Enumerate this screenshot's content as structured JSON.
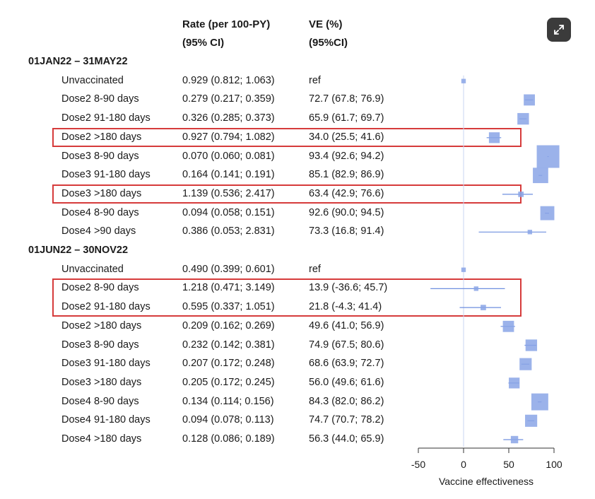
{
  "headers": {
    "rate_line1": "Rate (per 100-PY)",
    "rate_line2": "(95% CI)",
    "ve_line1": "VE (%)",
    "ve_line2": "(95%CI)"
  },
  "chart_data": {
    "type": "forest",
    "xlabel": "Vaccine effectiveness",
    "xlim": [
      -50,
      100
    ],
    "xticks": [
      -50,
      0,
      50,
      100
    ],
    "sections": [
      {
        "label": "01JAN22 – 31MAY22",
        "rows": [
          {
            "group": "Unvaccinated",
            "rate": "0.929 (0.812; 1.063)",
            "ve_text": "ref",
            "ve": 0,
            "lo": 0,
            "hi": 0,
            "weight": 0.05,
            "highlight": false
          },
          {
            "group": "Dose2 8-90 days",
            "rate": "0.279 (0.217; 0.359)",
            "ve_text": "72.7 (67.8; 76.9)",
            "ve": 72.7,
            "lo": 67.8,
            "hi": 76.9,
            "weight": 0.4,
            "highlight": false
          },
          {
            "group": "Dose2 91-180 days",
            "rate": "0.326 (0.285; 0.373)",
            "ve_text": "65.9 (61.7; 69.7)",
            "ve": 65.9,
            "lo": 61.7,
            "hi": 69.7,
            "weight": 0.42,
            "highlight": false
          },
          {
            "group": "Dose2 >180 days",
            "rate": "0.927 (0.794; 1.082)",
            "ve_text": "34.0 (25.5; 41.6)",
            "ve": 34.0,
            "lo": 25.5,
            "hi": 41.6,
            "weight": 0.38,
            "highlight": true
          },
          {
            "group": "Dose3 8-90 days",
            "rate": "0.070 (0.060; 0.081)",
            "ve_text": "93.4 (92.6; 94.2)",
            "ve": 93.4,
            "lo": 92.6,
            "hi": 94.2,
            "weight": 1.0,
            "highlight": false
          },
          {
            "group": "Dose3 91-180 days",
            "rate": "0.164 (0.141; 0.191)",
            "ve_text": "85.1 (82.9; 86.9)",
            "ve": 85.1,
            "lo": 82.9,
            "hi": 86.9,
            "weight": 0.62,
            "highlight": false
          },
          {
            "group": "Dose3 >180 days",
            "rate": "1.139 (0.536; 2.417)",
            "ve_text": "63.4 (42.9; 76.6)",
            "ve": 63.4,
            "lo": 42.9,
            "hi": 76.6,
            "weight": 0.1,
            "highlight": true
          },
          {
            "group": "Dose4 8-90 days",
            "rate": "0.094 (0.058; 0.151)",
            "ve_text": "92.6 (90.0; 94.5)",
            "ve": 92.6,
            "lo": 90.0,
            "hi": 94.5,
            "weight": 0.55,
            "highlight": false
          },
          {
            "group": "Dose4 >90 days",
            "rate": "0.386 (0.053; 2.831)",
            "ve_text": "73.3 (16.8; 91.4)",
            "ve": 73.3,
            "lo": 16.8,
            "hi": 91.4,
            "weight": 0.05,
            "highlight": false
          }
        ]
      },
      {
        "label": "01JUN22 – 30NOV22",
        "rows": [
          {
            "group": "Unvaccinated",
            "rate": "0.490 (0.399; 0.601)",
            "ve_text": "ref",
            "ve": 0,
            "lo": 0,
            "hi": 0,
            "weight": 0.05,
            "highlight": false
          },
          {
            "group": "Dose2 8-90 days",
            "rate": "1.218 (0.471; 3.149)",
            "ve_text": "13.9 (-36.6; 45.7)",
            "ve": 13.9,
            "lo": -36.6,
            "hi": 45.7,
            "weight": 0.05,
            "highlight": true
          },
          {
            "group": "Dose2 91-180 days",
            "rate": "0.595 (0.337; 1.051)",
            "ve_text": "21.8 (-4.3; 41.4)",
            "ve": 21.8,
            "lo": -4.3,
            "hi": 41.4,
            "weight": 0.1,
            "highlight": true
          },
          {
            "group": "Dose2 >180 days",
            "rate": "0.209 (0.162; 0.269)",
            "ve_text": "49.6 (41.0; 56.9)",
            "ve": 49.6,
            "lo": 41.0,
            "hi": 56.9,
            "weight": 0.4,
            "highlight": false
          },
          {
            "group": "Dose3 8-90 days",
            "rate": "0.232 (0.142; 0.381)",
            "ve_text": "74.9 (67.5; 80.6)",
            "ve": 74.9,
            "lo": 67.5,
            "hi": 80.6,
            "weight": 0.42,
            "highlight": false
          },
          {
            "group": "Dose3 91-180 days",
            "rate": "0.207 (0.172; 0.248)",
            "ve_text": "68.6 (63.9; 72.7)",
            "ve": 68.6,
            "lo": 63.9,
            "hi": 72.7,
            "weight": 0.45,
            "highlight": false
          },
          {
            "group": "Dose3 >180 days",
            "rate": "0.205 (0.172; 0.245)",
            "ve_text": "56.0 (49.6; 61.6)",
            "ve": 56.0,
            "lo": 49.6,
            "hi": 61.6,
            "weight": 0.38,
            "highlight": false
          },
          {
            "group": "Dose4 8-90 days",
            "rate": "0.134 (0.114; 0.156)",
            "ve_text": "84.3 (82.0; 86.2)",
            "ve": 84.3,
            "lo": 82.0,
            "hi": 86.2,
            "weight": 0.7,
            "highlight": false
          },
          {
            "group": "Dose4 91-180 days",
            "rate": "0.094 (0.078; 0.113)",
            "ve_text": "74.7 (70.7; 78.2)",
            "ve": 74.7,
            "lo": 70.7,
            "hi": 78.2,
            "weight": 0.45,
            "highlight": false
          },
          {
            "group": "Dose4 >180 days",
            "rate": "0.128 (0.086; 0.189)",
            "ve_text": "56.3 (44.0; 65.9)",
            "ve": 56.3,
            "lo": 44.0,
            "hi": 65.9,
            "weight": 0.2,
            "highlight": false
          }
        ]
      }
    ],
    "colors": {
      "marker": "#8aa4e6",
      "line": "#6f8fdf",
      "highlight": "#d63b3b",
      "axis": "#333333"
    }
  },
  "ui": {
    "expand_icon": "expand-icon"
  }
}
